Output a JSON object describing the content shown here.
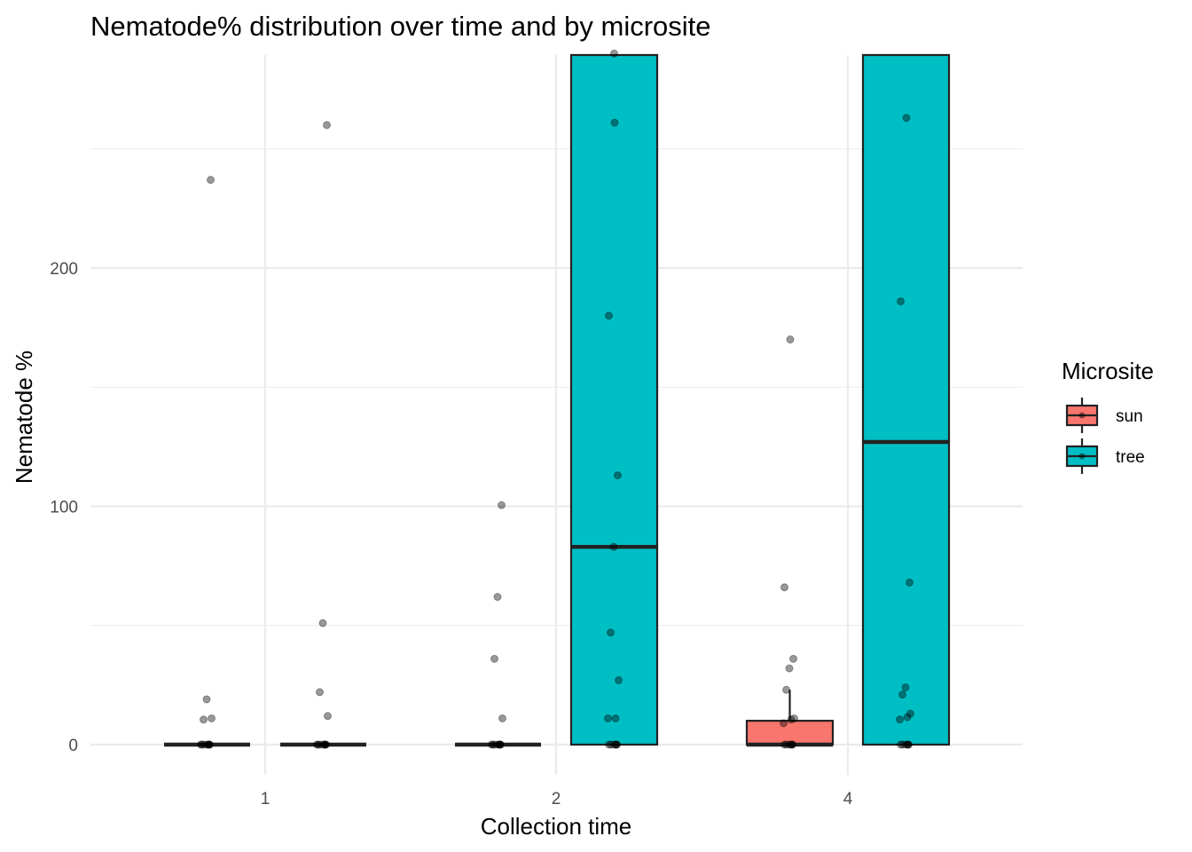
{
  "chart_data": {
    "type": "boxplot",
    "title": "Nematode% distribution over time and by microsite",
    "xlabel": "Collection time",
    "ylabel": "Nematode %",
    "categories": [
      "1",
      "2",
      "4"
    ],
    "ylim": [
      -11,
      290
    ],
    "yticks": [
      0,
      100,
      200
    ],
    "grid": true,
    "legend": {
      "title": "Microsite",
      "position": "right"
    },
    "series": [
      {
        "name": "sun",
        "color": "#f8766d",
        "boxes": [
          {
            "x": "1",
            "q1": 0,
            "median": 0,
            "q3": 0,
            "whisker_low": 0,
            "whisker_high": 0
          },
          {
            "x": "2",
            "q1": 0,
            "median": 0,
            "q3": 0,
            "whisker_low": 0,
            "whisker_high": 0
          },
          {
            "x": "4",
            "q1": 0,
            "median": 0,
            "q3": 10,
            "whisker_low": 0,
            "whisker_high": 23
          }
        ],
        "points": [
          {
            "x": "1",
            "y": [
              0,
              0,
              0,
              0,
              0,
              0,
              0,
              0,
              11,
              10.5,
              19,
              237
            ]
          },
          {
            "x": "2",
            "y": [
              0,
              0,
              0,
              0,
              0,
              0,
              0,
              0,
              11,
              36,
              62,
              100.5
            ]
          },
          {
            "x": "4",
            "y": [
              0,
              0,
              0,
              0,
              0,
              0,
              9,
              10.5,
              11,
              23,
              32,
              36,
              66,
              170
            ]
          }
        ]
      },
      {
        "name": "tree",
        "color": "#00bfc4",
        "boxes": [
          {
            "x": "1",
            "q1": 0,
            "median": 0,
            "q3": 0,
            "whisker_low": 0,
            "whisker_high": 0
          },
          {
            "x": "2",
            "q1": 0,
            "median": 83,
            "q3": 290,
            "whisker_low": 0,
            "whisker_high": 290
          },
          {
            "x": "4",
            "q1": 0,
            "median": 127,
            "q3": 290,
            "whisker_low": 0,
            "whisker_high": 290
          }
        ],
        "points": [
          {
            "x": "1",
            "y": [
              0,
              0,
              0,
              0,
              0,
              0,
              0,
              0,
              12,
              22,
              51,
              260
            ]
          },
          {
            "x": "2",
            "y": [
              0,
              0,
              0,
              0,
              0,
              0,
              11,
              11,
              27,
              47,
              83,
              113,
              180,
              261,
              290
            ]
          },
          {
            "x": "4",
            "y": [
              0,
              0,
              0,
              0,
              0,
              0,
              10.5,
              11.5,
              13,
              21,
              24,
              68,
              186,
              263
            ]
          }
        ]
      }
    ]
  }
}
